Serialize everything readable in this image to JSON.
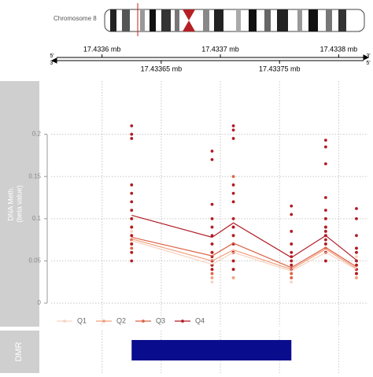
{
  "chart_data": {
    "type": "line",
    "ideogram_label": "Chromosome 8",
    "strand_labels": {
      "left": [
        "5'",
        "3'"
      ],
      "right": [
        "3'",
        "5'"
      ]
    },
    "xlim": [
      17.433557,
      17.433825
    ],
    "xticks": [
      {
        "value": 17.4336,
        "label": "17.4336 mb"
      },
      {
        "value": 17.43365,
        "label": "17.43365 mb"
      },
      {
        "value": 17.4337,
        "label": "17.4337 mb"
      },
      {
        "value": 17.43375,
        "label": "17.43375 mb"
      },
      {
        "value": 17.4338,
        "label": "17.4338 mb"
      }
    ],
    "ylabel": [
      "DNA Meth.",
      "(beta value)"
    ],
    "ylim": [
      -0.012,
      0.263
    ],
    "yticks": [
      0,
      0.05,
      0.1,
      0.15,
      0.2
    ],
    "grid": true,
    "x": [
      17.433625,
      17.433693,
      17.433711,
      17.43376,
      17.433789,
      17.433815
    ],
    "series": [
      {
        "name": "Q1",
        "color": "#f7d3c0",
        "values": [
          0.074,
          0.046,
          0.06,
          0.038,
          0.06,
          0.04
        ],
        "points": [
          [
            0.085,
            0.075,
            0.07,
            0.065
          ],
          [
            0.055,
            0.045,
            0.04,
            0.03,
            0.025
          ],
          [
            0.09,
            0.07,
            0.06,
            0.05,
            0.04,
            0.03
          ],
          [
            0.055,
            0.04,
            0.035,
            0.03,
            0.025
          ],
          [
            0.08,
            0.07,
            0.065,
            0.06,
            0.05
          ],
          [
            0.055,
            0.04,
            0.035,
            0.03
          ]
        ]
      },
      {
        "name": "Q2",
        "color": "#f2a07e",
        "values": [
          0.076,
          0.05,
          0.063,
          0.04,
          0.064,
          0.041
        ],
        "points": [
          [
            0.09,
            0.08,
            0.075,
            0.07,
            0.065
          ],
          [
            0.06,
            0.05,
            0.045,
            0.04,
            0.03
          ],
          [
            0.1,
            0.08,
            0.07,
            0.06,
            0.05,
            0.04,
            0.03
          ],
          [
            0.06,
            0.045,
            0.04,
            0.035,
            0.03
          ],
          [
            0.09,
            0.08,
            0.07,
            0.065,
            0.06,
            0.05
          ],
          [
            0.06,
            0.045,
            0.04,
            0.035,
            0.03
          ]
        ]
      },
      {
        "name": "Q3",
        "color": "#dc6346",
        "values": [
          0.078,
          0.056,
          0.071,
          0.042,
          0.066,
          0.043
        ],
        "points": [
          [
            0.1,
            0.09,
            0.08,
            0.075,
            0.07,
            0.065,
            0.06
          ],
          [
            0.07,
            0.06,
            0.05,
            0.045,
            0.04,
            0.035
          ],
          [
            0.15,
            0.12,
            0.09,
            0.08,
            0.07,
            0.06,
            0.05,
            0.04
          ],
          [
            0.07,
            0.05,
            0.045,
            0.04,
            0.035,
            0.03
          ],
          [
            0.1,
            0.09,
            0.08,
            0.07,
            0.065,
            0.06,
            0.05
          ],
          [
            0.065,
            0.05,
            0.045,
            0.04,
            0.035
          ]
        ]
      },
      {
        "name": "Q4",
        "color": "#b01c24",
        "values": [
          0.104,
          0.078,
          0.095,
          0.054,
          0.08,
          0.051
        ],
        "points": [
          [
            0.21,
            0.2,
            0.195,
            0.14,
            0.13,
            0.12,
            0.11,
            0.1,
            0.09,
            0.08,
            0.07,
            0.06,
            0.05
          ],
          [
            0.18,
            0.17,
            0.117,
            0.1,
            0.09,
            0.08,
            0.07,
            0.06,
            0.055,
            0.05,
            0.045,
            0.04
          ],
          [
            0.21,
            0.205,
            0.195,
            0.14,
            0.13,
            0.12,
            0.1,
            0.09,
            0.08,
            0.07,
            0.06,
            0.05,
            0.04
          ],
          [
            0.115,
            0.105,
            0.085,
            0.07,
            0.06,
            0.055,
            0.05,
            0.045,
            0.04
          ],
          [
            0.193,
            0.185,
            0.165,
            0.125,
            0.11,
            0.1,
            0.09,
            0.085,
            0.08,
            0.075,
            0.07,
            0.06,
            0.05
          ],
          [
            0.112,
            0.1,
            0.08,
            0.065,
            0.06,
            0.05,
            0.045,
            0.04,
            0.035
          ]
        ]
      }
    ],
    "dmr": {
      "label": "DMR",
      "start": 17.433625,
      "end": 17.43376,
      "color": "#0a0c8e"
    }
  }
}
